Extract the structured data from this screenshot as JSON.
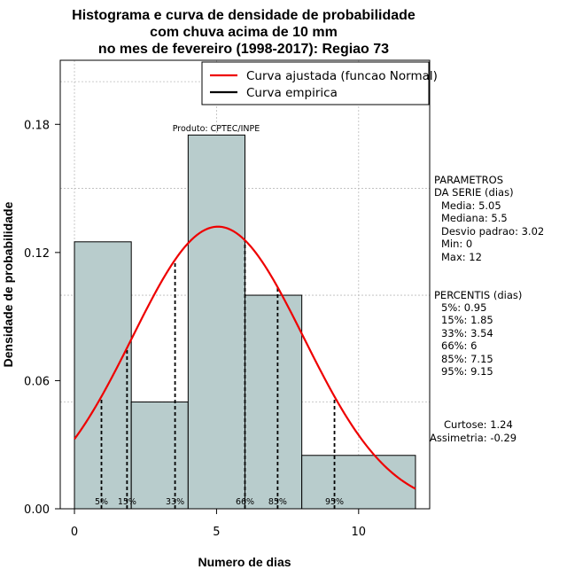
{
  "chart_data": {
    "type": "bar",
    "title_lines": [
      "Histograma e curva de densidade de probabilidade",
      "com chuva acima de 10 mm",
      "no mes de fevereiro (1998-2017): Regiao 73"
    ],
    "xlabel": "Numero de dias",
    "ylabel": "Densidade de probabilidade",
    "xlim": [
      -0.5,
      12.5
    ],
    "ylim": [
      0,
      0.21
    ],
    "x_ticks": [
      0,
      5,
      10
    ],
    "y_ticks": [
      0.0,
      0.06,
      0.12,
      0.18
    ],
    "y_tick_labels": [
      "0.00",
      "0.06",
      "0.12",
      "0.18"
    ],
    "grid": true,
    "bars": [
      {
        "x0": 0,
        "x1": 2,
        "value": 0.125
      },
      {
        "x0": 2,
        "x1": 4,
        "value": 0.05
      },
      {
        "x0": 4,
        "x1": 6,
        "value": 0.175
      },
      {
        "x0": 6,
        "x1": 8,
        "value": 0.1
      },
      {
        "x0": 8,
        "x1": 12,
        "value": 0.025
      }
    ],
    "bar_color": "#b8cccc",
    "curve": {
      "mean": 5.05,
      "sd": 3.02,
      "x_from": 0,
      "x_to": 12,
      "color": "#ee0000"
    },
    "percentile_lines": [
      {
        "label": "5%",
        "x": 0.95
      },
      {
        "label": "15%",
        "x": 1.85
      },
      {
        "label": "33%",
        "x": 3.54
      },
      {
        "label": "66%",
        "x": 6
      },
      {
        "label": "85%",
        "x": 7.15
      },
      {
        "label": "95%",
        "x": 9.15
      }
    ],
    "legend": {
      "position": "top-right",
      "items": [
        {
          "label": "Curva ajustada (funcao Normal)",
          "color": "#ee0000"
        },
        {
          "label": "Curva empirica",
          "color": "#000000"
        }
      ]
    },
    "credit": "Produto: CPTEC/INPE"
  },
  "side_panel": {
    "params_heading": [
      "PARAMETROS",
      "DA SERIE (dias)"
    ],
    "params": [
      "Media: 5.05",
      "Mediana: 5.5",
      "Desvio padrao: 3.02",
      "Min: 0",
      "Max: 12"
    ],
    "pct_heading": "PERCENTIS (dias)",
    "pcts": [
      "5%: 0.95",
      "15%: 1.85",
      "33%: 3.54",
      "66%: 6",
      "85%: 7.15",
      "95%: 9.15"
    ],
    "curtose": "Curtose: 1.24",
    "assimetria": "Assimetria: -0.29"
  }
}
